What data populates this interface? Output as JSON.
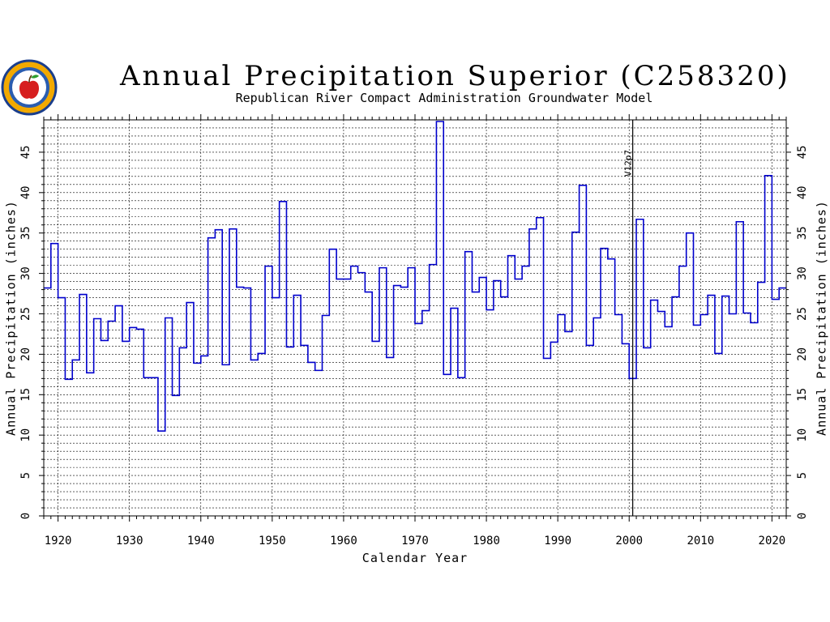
{
  "page": {
    "title": "Annual Precipitation Superior (C258320)",
    "subtitle": "Republican River Compact Administration Groundwater Model"
  },
  "logo": {
    "name": "apple-seal-logo"
  },
  "chart_data": {
    "type": "line",
    "style": "step",
    "title": "Annual Precipitation Superior (C258320)",
    "subtitle": "Republican River Compact Administration Groundwater Model",
    "xlabel": "Calendar Year",
    "ylabel": "Annual Precipitation (inches)",
    "ylabel_right": "Annual Precipitation (inches)",
    "xlim": [
      1918,
      2022
    ],
    "ylim": [
      0,
      49
    ],
    "x_ticks": [
      1920,
      1930,
      1940,
      1950,
      1960,
      1970,
      1980,
      1990,
      2000,
      2010,
      2020
    ],
    "y_ticks": [
      0,
      5,
      10,
      15,
      20,
      25,
      30,
      35,
      40,
      45
    ],
    "grid": true,
    "line_color": "#0000cc",
    "annotation": {
      "label": "V12p7",
      "x": 2001
    },
    "series": [
      {
        "x": [
          1918,
          1919,
          1920,
          1921,
          1922,
          1923,
          1924,
          1925,
          1926,
          1927,
          1928,
          1929,
          1930,
          1931,
          1932,
          1933,
          1934,
          1935,
          1936,
          1937,
          1938,
          1939,
          1940,
          1941,
          1942,
          1943,
          1944,
          1945,
          1946,
          1947,
          1948,
          1949,
          1950,
          1951,
          1952,
          1953,
          1954,
          1955,
          1956,
          1957,
          1958,
          1959,
          1960,
          1961,
          1962,
          1963,
          1964,
          1965,
          1966,
          1967,
          1968,
          1969,
          1970,
          1971,
          1972,
          1973,
          1974,
          1975,
          1976,
          1977,
          1978,
          1979,
          1980,
          1981,
          1982,
          1983,
          1984,
          1985,
          1986,
          1987,
          1988,
          1989,
          1990,
          1991,
          1992,
          1993,
          1994,
          1995,
          1996,
          1997,
          1998,
          1999,
          2000,
          2001,
          2002,
          2003,
          2004,
          2005,
          2006,
          2007,
          2008,
          2009,
          2010,
          2011,
          2012,
          2013,
          2014,
          2015,
          2016,
          2017,
          2018,
          2019,
          2020,
          2021
        ],
        "values": [
          28.2,
          33.7,
          27.0,
          16.9,
          19.3,
          27.4,
          17.7,
          24.4,
          21.7,
          24.1,
          26.0,
          21.6,
          23.3,
          23.1,
          17.1,
          17.1,
          10.5,
          24.5,
          14.9,
          20.8,
          26.4,
          18.9,
          19.8,
          34.4,
          35.4,
          18.7,
          35.5,
          28.3,
          28.2,
          19.3,
          20.1,
          30.9,
          27.0,
          38.9,
          20.9,
          27.3,
          21.1,
          19.0,
          18.0,
          24.8,
          33.0,
          29.3,
          29.3,
          30.9,
          30.1,
          27.7,
          21.6,
          30.7,
          19.6,
          28.5,
          28.3,
          30.7,
          23.8,
          25.4,
          31.1,
          48.8,
          17.5,
          25.7,
          17.1,
          32.7,
          27.7,
          29.5,
          25.5,
          29.1,
          27.1,
          32.2,
          29.3,
          30.9,
          35.5,
          36.9,
          19.5,
          21.5,
          24.9,
          22.8,
          35.1,
          40.9,
          21.1,
          24.5,
          33.1,
          31.8,
          24.9,
          21.3,
          17.0,
          36.7,
          20.8,
          26.7,
          25.3,
          23.4,
          27.1,
          30.9,
          35.0,
          23.6,
          24.9,
          27.3,
          20.1,
          27.2,
          25.0,
          36.4,
          25.1,
          23.9,
          28.9,
          42.1,
          26.8,
          28.2
        ]
      }
    ]
  }
}
